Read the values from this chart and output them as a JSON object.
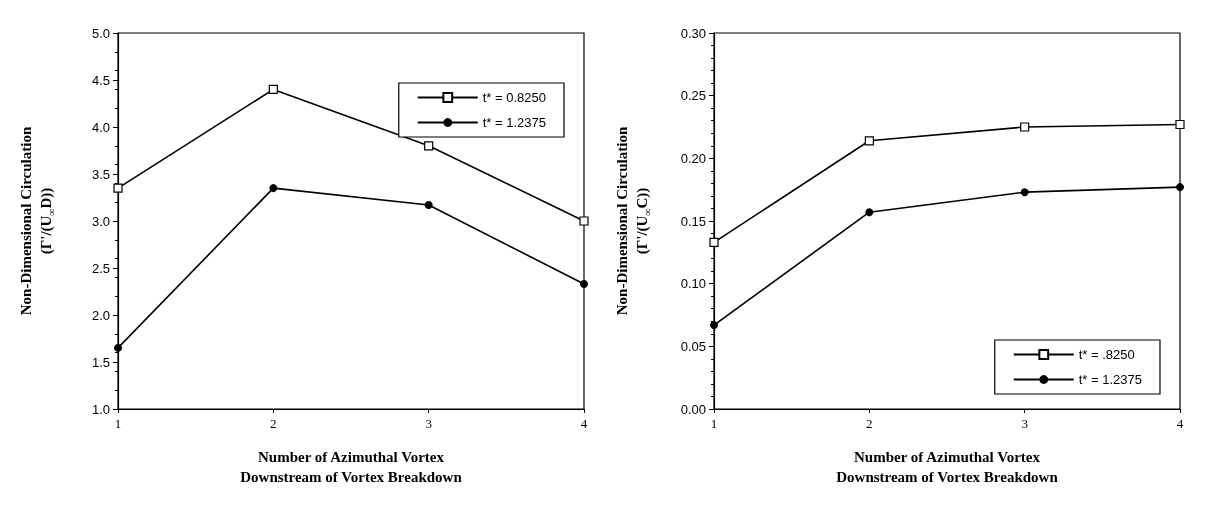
{
  "chart_data": [
    {
      "type": "line",
      "xlabel": "Number of Azimuthal Vortex\nDownstream of Vortex Breakdown",
      "ylabel": "Non-Dimensional Circulation\n(Γ'/(U$_{∞}$D))",
      "x": [
        1,
        2,
        3,
        4
      ],
      "xlim": [
        1,
        4
      ],
      "xticks": [
        1,
        2,
        3,
        4
      ],
      "ylim": [
        1,
        5
      ],
      "yticks": [
        {
          "value": 1,
          "label": "1.0"
        },
        {
          "value": 1.5,
          "label": "1.5"
        },
        {
          "value": 2,
          "label": "2.0"
        },
        {
          "value": 2.5,
          "label": "2.5"
        },
        {
          "value": 3,
          "label": "3.0"
        },
        {
          "value": 3.5,
          "label": "3.5"
        },
        {
          "value": 4,
          "label": "4.0"
        },
        {
          "value": 4.5,
          "label": "4.5"
        },
        {
          "value": 5,
          "label": "5.0"
        }
      ],
      "grid": false,
      "legend": "top right",
      "line_style": "solid",
      "series": [
        {
          "name": "t* = 0.8250",
          "color": "#000000",
          "marker": "square",
          "values": [
            3.35,
            4.4,
            3.8,
            3.0
          ]
        },
        {
          "name": "t* = 1.2375",
          "color": "#000000",
          "marker": "circle",
          "values": [
            1.65,
            3.35,
            3.17,
            2.33
          ]
        }
      ]
    },
    {
      "type": "line",
      "xlabel": "Number of Azimuthal Vortex\nDownstream of Vortex Breakdown",
      "ylabel": "Non-Dimensional Circulation\n(Γ'/(U$_{∞}$C))",
      "x": [
        1,
        2,
        3,
        4
      ],
      "xlim": [
        1,
        4
      ],
      "xticks": [
        1,
        2,
        3,
        4
      ],
      "ylim": [
        0,
        0.3
      ],
      "yticks": [
        {
          "value": 0,
          "label": "0.00"
        },
        {
          "value": 0.05,
          "label": "0.05"
        },
        {
          "value": 0.1,
          "label": "0.10"
        },
        {
          "value": 0.15,
          "label": "0.15"
        },
        {
          "value": 0.2,
          "label": "0.20"
        },
        {
          "value": 0.25,
          "label": "0.25"
        },
        {
          "value": 0.3,
          "label": "0.30"
        }
      ],
      "grid": false,
      "legend": "bottom right",
      "line_style": "solid",
      "series": [
        {
          "name": "t* = .8250",
          "color": "#000000",
          "marker": "square",
          "values": [
            0.133,
            0.214,
            0.225,
            0.227
          ]
        },
        {
          "name": "t* = 1.2375",
          "color": "#000000",
          "marker": "circle",
          "values": [
            0.067,
            0.157,
            0.173,
            0.177
          ]
        }
      ]
    }
  ]
}
